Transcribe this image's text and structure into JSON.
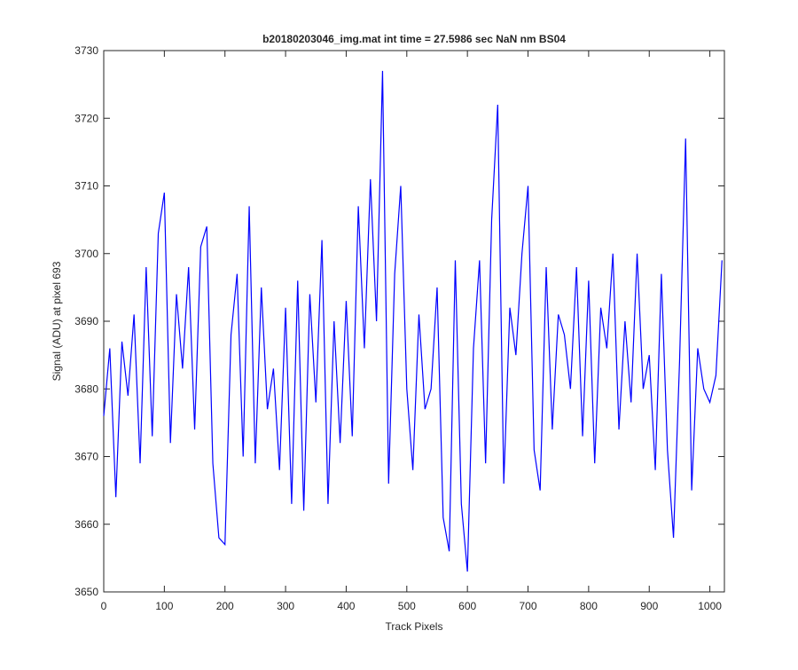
{
  "chart_data": {
    "type": "line",
    "title": "b20180203046_img.mat int time = 27.5986 sec  NaN nm BS04",
    "x_label": "Track Pixels",
    "y_label": "Signal (ADU) at pixel 693",
    "xlim": [
      0,
      1024
    ],
    "ylim": [
      3650,
      3730
    ],
    "xticks": [
      0,
      100,
      200,
      300,
      400,
      500,
      600,
      700,
      800,
      900,
      1000
    ],
    "yticks": [
      3650,
      3660,
      3670,
      3680,
      3690,
      3700,
      3710,
      3720,
      3730
    ],
    "x": [
      0,
      10,
      20,
      30,
      40,
      50,
      60,
      70,
      80,
      90,
      100,
      110,
      120,
      130,
      140,
      150,
      160,
      170,
      180,
      190,
      200,
      210,
      220,
      230,
      240,
      250,
      260,
      270,
      280,
      290,
      300,
      310,
      320,
      330,
      340,
      350,
      360,
      370,
      380,
      390,
      400,
      410,
      420,
      430,
      440,
      450,
      460,
      470,
      480,
      490,
      500,
      510,
      520,
      530,
      540,
      550,
      560,
      570,
      580,
      590,
      600,
      610,
      620,
      630,
      640,
      650,
      660,
      670,
      680,
      690,
      700,
      710,
      720,
      730,
      740,
      750,
      760,
      770,
      780,
      790,
      800,
      810,
      820,
      830,
      840,
      850,
      860,
      870,
      880,
      890,
      900,
      910,
      920,
      930,
      940,
      950,
      960,
      970,
      980,
      990,
      1000,
      1010,
      1020
    ],
    "series": [
      {
        "name": "signal",
        "color": "#0000ff",
        "values": [
          3676,
          3686,
          3664,
          3687,
          3679,
          3691,
          3669,
          3698,
          3673,
          3703,
          3709,
          3672,
          3694,
          3683,
          3698,
          3674,
          3701,
          3704,
          3669,
          3658,
          3657,
          3688,
          3697,
          3670,
          3707,
          3669,
          3695,
          3677,
          3683,
          3668,
          3692,
          3663,
          3696,
          3662,
          3694,
          3678,
          3702,
          3663,
          3690,
          3672,
          3693,
          3673,
          3707,
          3686,
          3711,
          3690,
          3727,
          3666,
          3697,
          3710,
          3680,
          3668,
          3691,
          3677,
          3680,
          3695,
          3661,
          3656,
          3699,
          3663,
          3653,
          3686,
          3699,
          3669,
          3705,
          3722,
          3666,
          3692,
          3685,
          3700,
          3710,
          3671,
          3665,
          3698,
          3674,
          3691,
          3688,
          3680,
          3698,
          3673,
          3696,
          3669,
          3692,
          3686,
          3700,
          3674,
          3690,
          3678,
          3700,
          3680,
          3685,
          3668,
          3697,
          3671,
          3658,
          3684,
          3717,
          3665,
          3686,
          3680,
          3678,
          3682,
          3699
        ]
      }
    ]
  }
}
